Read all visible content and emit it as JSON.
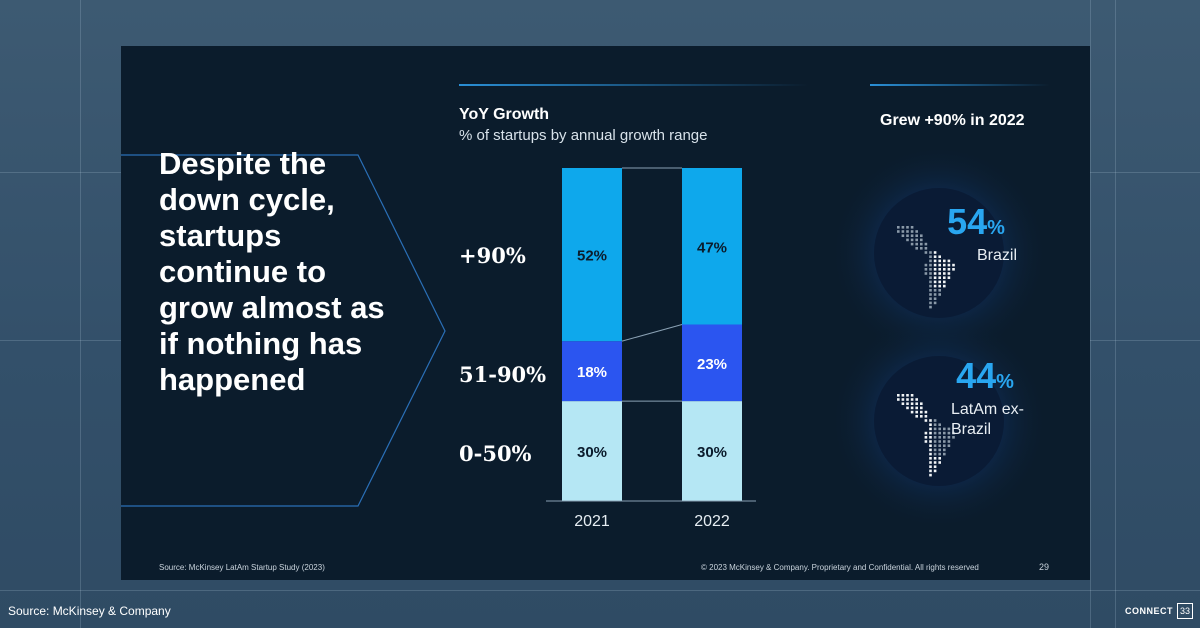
{
  "slide": {
    "headline": "Despite the down cycle, startups continue to grow almost as if nothing has happened",
    "footer_source": "Source: McKinsey LatAm Startup Study (2023)",
    "footer_copyright": "© 2023 McKinsey & Company. Proprietary and Confidential. All rights reserved",
    "page_number": "29"
  },
  "chart_data": {
    "type": "bar",
    "stacked": true,
    "title": "YoY Growth",
    "subtitle": "% of startups by annual growth range",
    "categories": [
      "2021",
      "2022"
    ],
    "series": [
      {
        "name": "0-50%",
        "values": [
          30,
          30
        ],
        "labels": [
          "30%",
          "30%"
        ],
        "color": "#b5e7f4"
      },
      {
        "name": "51-90%",
        "values": [
          18,
          23
        ],
        "labels": [
          "18%",
          "23%"
        ],
        "color": "#2b55f0"
      },
      {
        "name": "+90%",
        "values": [
          52,
          47
        ],
        "labels": [
          "52%",
          "47%"
        ],
        "color": "#0ea8ec"
      }
    ],
    "ylim": [
      0,
      100
    ],
    "grid": false,
    "legend": "left"
  },
  "side_panel": {
    "title": "Grew +90% in 2022",
    "stats": [
      {
        "value": "54",
        "unit": "%",
        "label": "Brazil"
      },
      {
        "value": "44",
        "unit": "%",
        "label": "LatAm ex-Brazil"
      }
    ]
  },
  "outer": {
    "source": "Source: McKinsey & Company",
    "brand": "CONNECT",
    "brand_number": "33"
  },
  "colors": {
    "slide_bg": "#0b1c2c",
    "accent_blue": "#29a6f0",
    "page_bg": "#3d5a72"
  },
  "icons": [
    "latin-america-dot-map",
    "latin-america-dot-map"
  ]
}
